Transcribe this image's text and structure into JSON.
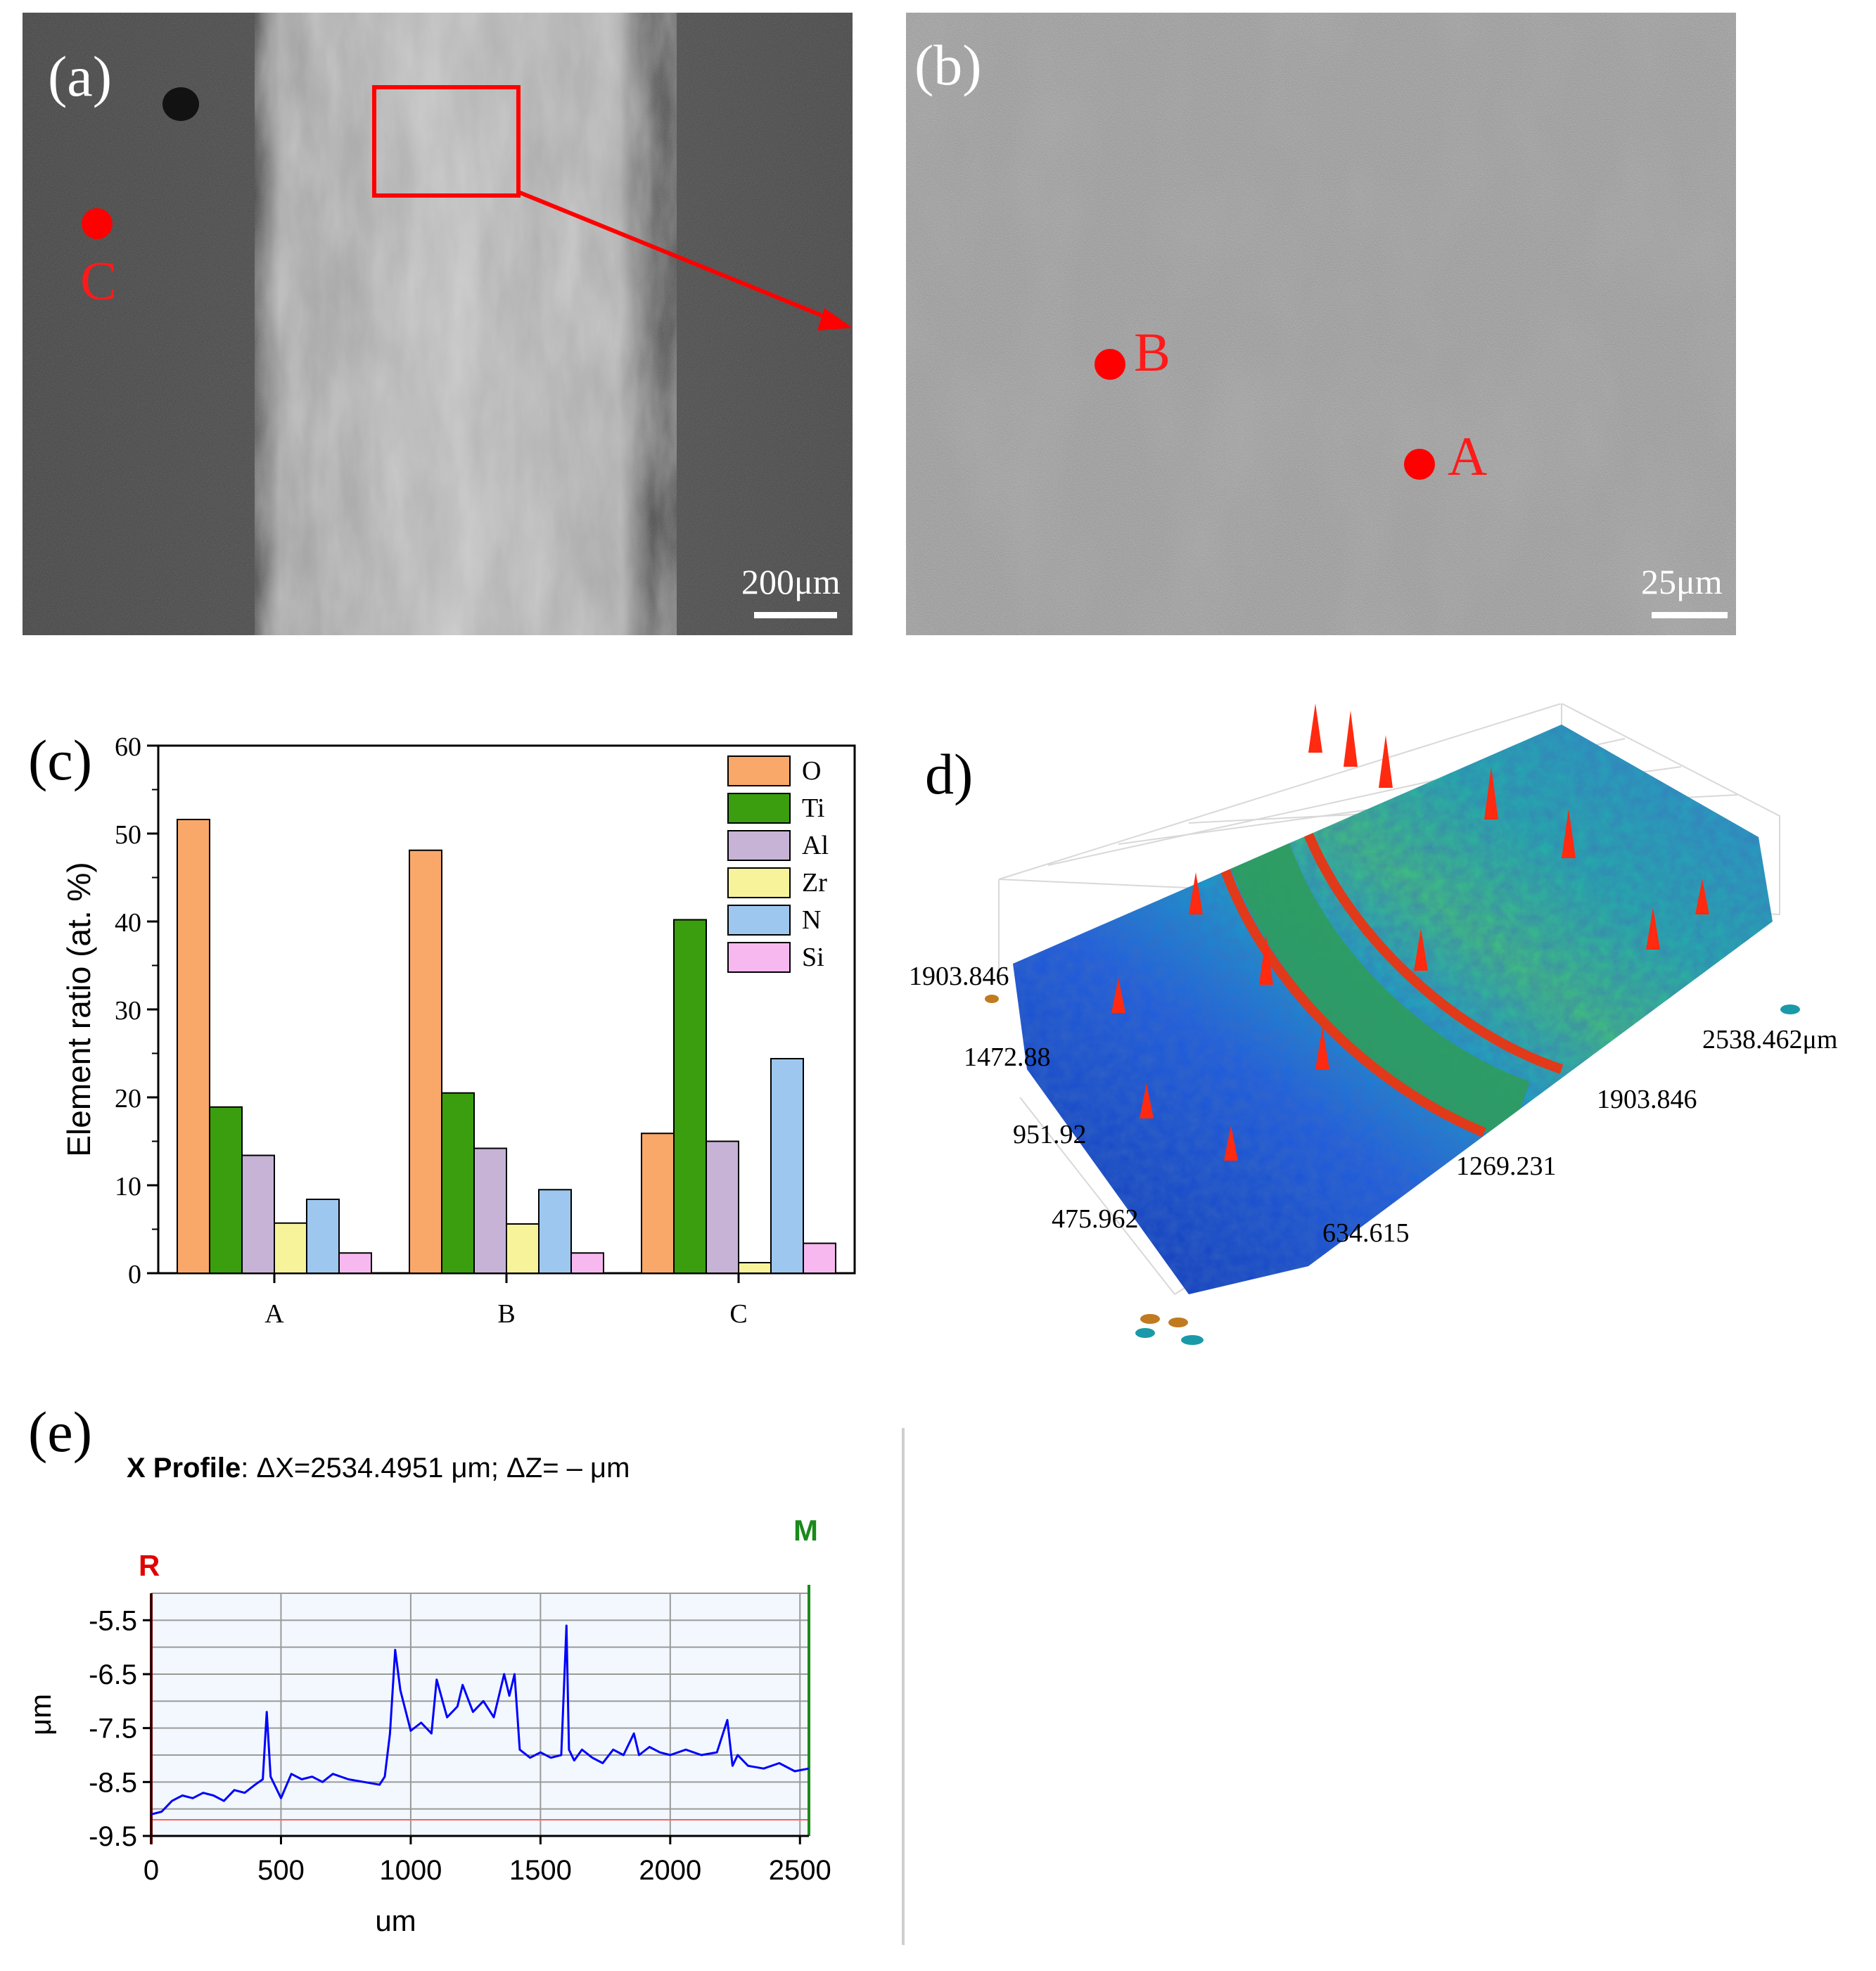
{
  "figure": {
    "panels": {
      "a": {
        "label": "(a)",
        "scale": "200μm",
        "points": [
          {
            "id": "C"
          }
        ]
      },
      "b": {
        "label": "(b)",
        "scale": "25μm",
        "points": [
          {
            "id": "B"
          },
          {
            "id": "A"
          }
        ]
      },
      "c": {
        "label": "(c)"
      },
      "d": {
        "label": "d)",
        "axis_labels": [
          "1903.846",
          "1472.88",
          "951.92",
          "475.962",
          "634.615",
          "1269.231",
          "1903.846",
          "2538.462μm"
        ]
      },
      "e": {
        "label": "(e)",
        "title_bold": "X Profile",
        "title_rest": ": ΔX=2534.4951 μm; ΔZ= ‒ μm",
        "marker_r": "R",
        "marker_m": "M"
      }
    }
  },
  "chart_data": [
    {
      "type": "bar",
      "categories": [
        "A",
        "B",
        "C"
      ],
      "series": [
        {
          "name": "O",
          "values": [
            51.6,
            48.1,
            15.9
          ]
        },
        {
          "name": "Ti",
          "values": [
            18.9,
            20.5,
            40.2
          ]
        },
        {
          "name": "Al",
          "values": [
            13.4,
            14.2,
            15.0
          ]
        },
        {
          "name": "Zr",
          "values": [
            5.7,
            5.6,
            1.2
          ]
        },
        {
          "name": "N",
          "values": [
            8.4,
            9.5,
            24.4
          ]
        },
        {
          "name": "Si",
          "values": [
            2.3,
            2.3,
            3.4
          ]
        }
      ],
      "colors": [
        "#f9a86a",
        "#3a9e0e",
        "#c6b3d6",
        "#f7f39a",
        "#9ec7ef",
        "#f7b8ef"
      ],
      "ylabel": "Element ratio (at. %)",
      "ylim": [
        0,
        60
      ],
      "yticks": [
        0,
        10,
        20,
        30,
        40,
        50,
        60
      ],
      "legend": "top-right"
    },
    {
      "type": "line",
      "xlabel": "um",
      "ylabel": "μm",
      "xlim": [
        0,
        2534.5
      ],
      "ylim": [
        -9.5,
        -5.0
      ],
      "xticks": [
        0,
        500,
        1000,
        1500,
        2000,
        2500
      ],
      "yticks": [
        -5.5,
        -6.5,
        -7.5,
        -8.5,
        -9.5
      ],
      "reference_line": -9.2,
      "color": "#0000ff",
      "series": [
        {
          "x": [
            0,
            40,
            80,
            120,
            160,
            200,
            240,
            280,
            320,
            360,
            400,
            430,
            445,
            460,
            500,
            540,
            580,
            620,
            660,
            700,
            760,
            820,
            880,
            900,
            920,
            940,
            960,
            1000,
            1040,
            1080,
            1100,
            1140,
            1180,
            1200,
            1240,
            1280,
            1320,
            1360,
            1380,
            1400,
            1420,
            1460,
            1500,
            1540,
            1580,
            1600,
            1610,
            1630,
            1660,
            1700,
            1740,
            1780,
            1820,
            1860,
            1880,
            1920,
            1960,
            2000,
            2060,
            2120,
            2180,
            2220,
            2240,
            2260,
            2300,
            2360,
            2420,
            2480,
            2534
          ],
          "y": [
            -9.1,
            -9.05,
            -8.85,
            -8.75,
            -8.8,
            -8.7,
            -8.75,
            -8.85,
            -8.65,
            -8.7,
            -8.55,
            -8.45,
            -7.2,
            -8.4,
            -8.8,
            -8.35,
            -8.45,
            -8.4,
            -8.5,
            -8.35,
            -8.45,
            -8.5,
            -8.55,
            -8.4,
            -7.6,
            -6.05,
            -6.8,
            -7.55,
            -7.4,
            -7.6,
            -6.6,
            -7.3,
            -7.1,
            -6.7,
            -7.2,
            -7.0,
            -7.3,
            -6.5,
            -6.9,
            -6.5,
            -7.9,
            -8.05,
            -7.95,
            -8.05,
            -8.0,
            -5.6,
            -7.9,
            -8.1,
            -7.9,
            -8.05,
            -8.15,
            -7.9,
            -8.0,
            -7.6,
            -8.0,
            -7.85,
            -7.95,
            -8.0,
            -7.9,
            -8.0,
            -7.95,
            -7.35,
            -8.2,
            -8.0,
            -8.2,
            -8.25,
            -8.15,
            -8.3,
            -8.25
          ]
        }
      ]
    }
  ]
}
